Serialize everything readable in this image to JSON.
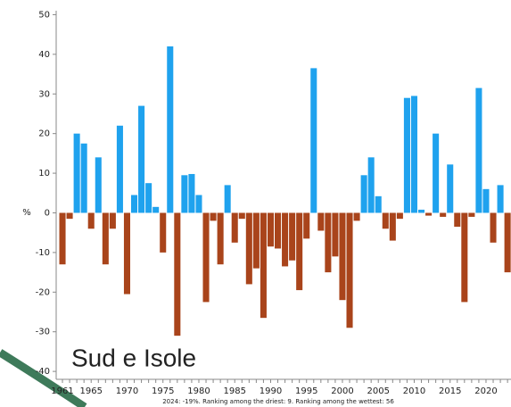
{
  "chart_data": {
    "type": "bar",
    "title": "Sud e Isole",
    "y_label": "%",
    "annotation": "2024: -19%. Ranking among the driest: 9. Ranking among the wettest: 56",
    "categories": [
      "1961",
      null,
      null,
      null,
      "1965",
      null,
      null,
      null,
      null,
      "1970",
      null,
      null,
      null,
      null,
      "1975",
      null,
      null,
      null,
      null,
      "1980",
      null,
      null,
      null,
      null,
      "1985",
      null,
      null,
      null,
      null,
      "1990",
      null,
      null,
      null,
      null,
      "1995",
      null,
      null,
      null,
      null,
      "2000",
      null,
      null,
      null,
      null,
      "2005",
      null,
      null,
      null,
      null,
      "2010",
      null,
      null,
      null,
      null,
      "2015",
      null,
      null,
      null,
      null,
      "2020",
      null,
      null,
      null
    ],
    "values": [
      -13,
      -1.5,
      20,
      17.5,
      -4,
      14,
      -13,
      -4,
      22,
      -20.5,
      4.5,
      27,
      7.5,
      1.5,
      -10,
      42,
      -31,
      9.5,
      9.8,
      4.5,
      -22.5,
      -2,
      -13,
      7,
      -7.5,
      -1.5,
      -18,
      -14,
      -26.5,
      -8.5,
      -9,
      -13.5,
      -12,
      -19.5,
      -6.5,
      36.5,
      -4.5,
      -15,
      -11,
      -22,
      -29,
      -2,
      9.5,
      14,
      4.2,
      -4,
      -7,
      -1.5,
      29,
      29.5,
      0.8,
      -0.7,
      20,
      -1,
      12.2,
      -3.5,
      -22.5,
      -1,
      31.5,
      6,
      -7.5,
      7,
      -15
    ],
    "positive_color": "#1fa2ee",
    "negative_color": "#a9441b",
    "ylim": [
      -42,
      51
    ],
    "yticks": [
      50,
      40,
      30,
      20,
      10,
      0,
      -10,
      -20,
      -30,
      -40
    ]
  }
}
